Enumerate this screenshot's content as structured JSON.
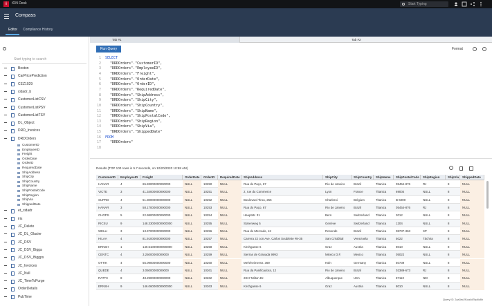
{
  "header": {
    "logo": "i",
    "app": "ION Desk",
    "search": "Start Typing"
  },
  "nav": {
    "title": "Compass",
    "tabs": [
      "Editor",
      "Compliance History"
    ]
  },
  "sidebar": {
    "search": "Start typing to search",
    "items": [
      {
        "label": "Boston"
      },
      {
        "label": "CarPricePrediction"
      },
      {
        "label": "CEZ1029"
      },
      {
        "label": "cidadr_b"
      },
      {
        "label": "CustomerListCSV"
      },
      {
        "label": "CustomerListPSV"
      },
      {
        "label": "CustomerListTSV"
      },
      {
        "label": "DL_Object"
      },
      {
        "label": "DRD_Invoices"
      },
      {
        "label": "DRDOrders",
        "children": [
          "CustomerID",
          "EmployeeID",
          "Freight",
          "OrderDate",
          "OrderID",
          "RequiredDate",
          "ShipAddress",
          "ShipCity",
          "ShipCountry",
          "ShipName",
          "ShipPostalCode",
          "ShipRegion",
          "ShipVia",
          "ShippedDate"
        ]
      },
      {
        "label": "et_cidadr"
      },
      {
        "label": "iris"
      },
      {
        "label": "JC_Delete"
      },
      {
        "label": "JC_DL_Glacier"
      },
      {
        "label": "JC_DSV"
      },
      {
        "label": "JC_DSV_Bigga"
      },
      {
        "label": "JC_DSV_Biggps"
      },
      {
        "label": "JC_Invoices"
      },
      {
        "label": "JC_Null"
      },
      {
        "label": "JC_TimeToPurge"
      },
      {
        "label": "OrderDetails"
      },
      {
        "label": "PubTime"
      }
    ]
  },
  "editor": {
    "tabs": [
      "Tab #1",
      "Tab #2"
    ],
    "run": "Run Query",
    "format": "Format",
    "lines": [
      {
        "n": 1,
        "text": "SELECT",
        "keyword": true
      },
      {
        "n": 2,
        "text": "\"DRDOrders\".\"CustomerID\","
      },
      {
        "n": 3,
        "text": "\"DRDOrders\".\"EmployeeID\","
      },
      {
        "n": 4,
        "text": "\"DRDOrders\".\"Freight\","
      },
      {
        "n": 5,
        "text": "\"DRDOrders\".\"OrderDate\","
      },
      {
        "n": 6,
        "text": "\"DRDOrders\".\"OrderID\","
      },
      {
        "n": 7,
        "text": "\"DRDOrders\".\"RequiredDate\","
      },
      {
        "n": 8,
        "text": "\"DRDOrders\".\"ShipAddress\","
      },
      {
        "n": 9,
        "text": "\"DRDOrders\".\"ShipCity\","
      },
      {
        "n": 10,
        "text": "\"DRDOrders\".\"ShipCountry\","
      },
      {
        "n": 11,
        "text": "\"DRDOrders\".\"ShipName\","
      },
      {
        "n": 12,
        "text": "\"DRDOrders\".\"ShipPostalCode\","
      },
      {
        "n": 13,
        "text": "\"DRDOrders\".\"ShipRegion\","
      },
      {
        "n": 14,
        "text": "\"DRDOrders\".\"ShipVia\","
      },
      {
        "n": 15,
        "text": "\"DRDOrders\".\"ShippedDate\""
      },
      {
        "n": 16,
        "text": "FROM",
        "keyword": true
      },
      {
        "n": 17,
        "text": "\"DRDOrders\""
      },
      {
        "n": 18
      }
    ]
  },
  "results": {
    "summary": "Results (TOP 100 rows in 5.7 seconds, on 10/20/2020 10:58 AM)",
    "columns": [
      "CustomerID",
      "EmployeeID",
      "Freight",
      "OrderDate",
      "OrderID",
      "RequiredDate",
      "ShipAddress",
      "ShipCity",
      "ShipCountry",
      "ShipName",
      "ShipPostalCode",
      "ShipRegion",
      "ShipVia",
      "ShippedDate"
    ],
    "rows": [
      [
        "HANAR",
        "4",
        "65.83000000000000",
        "NULL",
        "10250",
        "NULL",
        "Rua do Paço, 67",
        "Rio de Janeiro",
        "Brazil",
        "Titanica",
        "05454-876",
        "RJ",
        "8",
        "NULL"
      ],
      [
        "VICTE",
        "3",
        "41.34000000000000",
        "NULL",
        "10251",
        "NULL",
        "2, rue du Commerce",
        "Lyon",
        "France",
        "Titanica",
        "69004",
        "NULL",
        "8",
        "NULL"
      ],
      [
        "SUPRD",
        "4",
        "51.30000000000000",
        "NULL",
        "10252",
        "NULL",
        "Boulevard Tirou, 255",
        "Charleroi",
        "Belgium",
        "Titanica",
        "B-6000",
        "NULL",
        "8",
        "NULL"
      ],
      [
        "HANAR",
        "3",
        "58.17000000000000",
        "NULL",
        "10253",
        "NULL",
        "Rua do Paço, 67",
        "Rio de Janeiro",
        "Brazil",
        "Titanica",
        "05454-876",
        "RJ",
        "8",
        "NULL"
      ],
      [
        "CHOPS",
        "5",
        "22.98000000000000",
        "NULL",
        "10254",
        "NULL",
        "Hauptstr. 31",
        "Bern",
        "Switzerland",
        "Titanica",
        "3012",
        "NULL",
        "8",
        "NULL"
      ],
      [
        "RICSU",
        "9",
        "148.33000000000000",
        "NULL",
        "10255",
        "NULL",
        "Starenweg 5",
        "Genève",
        "Switzerland",
        "Titanica",
        "1204",
        "NULL",
        "8",
        "NULL"
      ],
      [
        "WELLI",
        "3",
        "13.97000000000000",
        "NULL",
        "10256",
        "NULL",
        "Rua do Mercado, 12",
        "Resende",
        "Brazil",
        "Titanica",
        "08737-363",
        "SP",
        "8",
        "NULL"
      ],
      [
        "HILAA",
        "4",
        "81.91000000000000",
        "NULL",
        "10257",
        "NULL",
        "Carrera 22 con Ave. Carlos Soublette #8-35",
        "San Cristóbal",
        "Venezuela",
        "Titanica",
        "5022",
        "Táchira",
        "8",
        "NULL"
      ],
      [
        "ERNSH",
        "1",
        "140.51000000000000",
        "NULL",
        "10258",
        "NULL",
        "Kirchgasse 6",
        "Graz",
        "Austria",
        "Titanica",
        "8010",
        "NULL",
        "8",
        "NULL"
      ],
      [
        "CENTC",
        "4",
        "3.25000000000000",
        "NULL",
        "10259",
        "NULL",
        "Sierras de Granada 9993",
        "México D.F.",
        "Mexico",
        "Titanica",
        "05022",
        "NULL",
        "8",
        "NULL"
      ],
      [
        "OTTIK",
        "4",
        "55.09000000000000",
        "NULL",
        "10260",
        "NULL",
        "Mehrheimerstr. 369",
        "Köln",
        "Germany",
        "Titanica",
        "50739",
        "NULL",
        "8",
        "NULL"
      ],
      [
        "QUEDE",
        "4",
        "3.05000000000000",
        "NULL",
        "10261",
        "NULL",
        "Rua da Panificadora, 12",
        "Rio de Janeiro",
        "Brazil",
        "Titanica",
        "02389-673",
        "RJ",
        "8",
        "NULL"
      ],
      [
        "RATTC",
        "8",
        "48.29000000000000",
        "NULL",
        "10262",
        "NULL",
        "2817 Milton Dr.",
        "Albuquerque",
        "USA",
        "Titanica",
        "87110",
        "NM",
        "8",
        "NULL"
      ],
      [
        "ERNSH",
        "9",
        "146.06000000000000",
        "NULL",
        "10263",
        "NULL",
        "Kirchgasse 6",
        "Graz",
        "Austria",
        "Titanica",
        "8010",
        "NULL",
        "8",
        "NULL"
      ]
    ]
  },
  "footer": {
    "query_id": "Query ID: 2aa3ec2f1ca4d7bp8c8b"
  }
}
